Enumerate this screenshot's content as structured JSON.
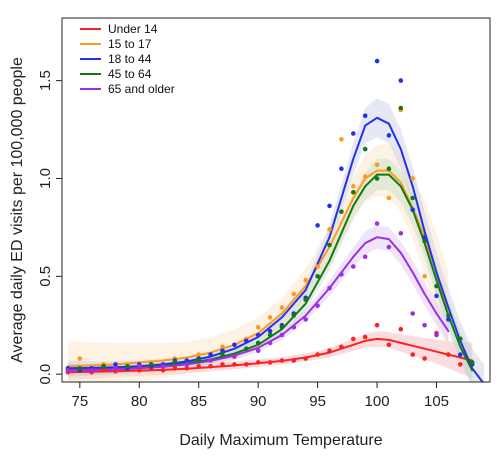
{
  "chart_data": {
    "type": "line",
    "xlabel": "Daily Maximum Temperature",
    "ylabel": "Average daily ED visits per 100,000 people",
    "xlim": [
      73.5,
      109.5
    ],
    "ylim": [
      -0.04,
      1.82
    ],
    "x_ticks": [
      75,
      80,
      85,
      90,
      95,
      100,
      105
    ],
    "x_tick_labels": [
      "75",
      "80",
      "85",
      "90",
      "95",
      "100",
      "105"
    ],
    "y_ticks": [
      0.0,
      0.5,
      1.0,
      1.5
    ],
    "y_tick_labels": [
      "0.0",
      "0.5",
      "1.0",
      "1.5"
    ],
    "grid": false,
    "legend_position": "top-left",
    "series": [
      {
        "name": "Under 14",
        "color": "#ff2020",
        "band_color": "#f5b4bc",
        "line": {
          "x": [
            74,
            76,
            78,
            80,
            82,
            84,
            86,
            88,
            90,
            92,
            94,
            96,
            98,
            99,
            100,
            101,
            102,
            103,
            104,
            105,
            106,
            107,
            108
          ],
          "y": [
            0.01,
            0.012,
            0.015,
            0.018,
            0.022,
            0.028,
            0.036,
            0.045,
            0.056,
            0.068,
            0.085,
            0.11,
            0.15,
            0.17,
            0.18,
            0.175,
            0.16,
            0.145,
            0.13,
            0.115,
            0.1,
            0.085,
            0.07
          ]
        },
        "band_half_width": [
          0.04,
          0.035,
          0.03,
          0.028,
          0.026,
          0.024,
          0.022,
          0.02,
          0.02,
          0.02,
          0.02,
          0.025,
          0.03,
          0.035,
          0.04,
          0.04,
          0.045,
          0.05,
          0.055,
          0.06,
          0.07,
          0.08,
          0.09
        ],
        "points": {
          "x": [
            74,
            75,
            76,
            77,
            78,
            79,
            80,
            81,
            82,
            83,
            84,
            85,
            86,
            87,
            88,
            89,
            90,
            91,
            92,
            93,
            94,
            95,
            96,
            97,
            98,
            99,
            100,
            101,
            102,
            103,
            104,
            105,
            106,
            107
          ],
          "y": [
            0.01,
            0.02,
            0.01,
            0.02,
            0.015,
            0.03,
            0.02,
            0.03,
            0.02,
            0.03,
            0.03,
            0.04,
            0.04,
            0.05,
            0.05,
            0.05,
            0.06,
            0.06,
            0.07,
            0.07,
            0.08,
            0.1,
            0.12,
            0.14,
            0.18,
            0.19,
            0.25,
            0.15,
            0.23,
            0.1,
            0.08,
            0.21,
            0.1,
            0.05
          ]
        }
      },
      {
        "name": "15 to 17",
        "color": "#ff9a1a",
        "band_color": "#fbe3c3",
        "line": {
          "x": [
            74,
            76,
            78,
            80,
            82,
            84,
            86,
            88,
            90,
            92,
            94,
            96,
            98,
            99,
            100,
            101,
            102,
            103,
            104,
            105,
            106
          ],
          "y": [
            0.04,
            0.045,
            0.05,
            0.06,
            0.07,
            0.085,
            0.11,
            0.15,
            0.21,
            0.31,
            0.45,
            0.65,
            0.9,
            1.0,
            1.04,
            1.04,
            0.98,
            0.85,
            0.7,
            0.52,
            0.3
          ]
        },
        "band_half_width": [
          0.13,
          0.12,
          0.11,
          0.1,
          0.09,
          0.08,
          0.08,
          0.08,
          0.08,
          0.08,
          0.09,
          0.1,
          0.11,
          0.12,
          0.13,
          0.14,
          0.15,
          0.16,
          0.18,
          0.2,
          0.22
        ],
        "points": {
          "x": [
            75,
            77,
            79,
            81,
            83,
            85,
            87,
            89,
            90,
            91,
            92,
            93,
            94,
            95,
            96,
            97,
            98,
            99,
            100,
            101,
            102,
            103,
            104
          ],
          "y": [
            0.08,
            0.05,
            0.05,
            0.06,
            0.08,
            0.1,
            0.14,
            0.18,
            0.24,
            0.29,
            0.34,
            0.41,
            0.48,
            0.55,
            0.74,
            1.2,
            0.96,
            1.01,
            1.07,
            0.9,
            1.35,
            1.0,
            0.5
          ]
        }
      },
      {
        "name": "18 to 44",
        "color": "#2233e6",
        "band_color": "#c8cde8",
        "line": {
          "x": [
            74,
            76,
            78,
            80,
            82,
            84,
            86,
            88,
            90,
            92,
            94,
            96,
            98,
            99,
            100,
            101,
            102,
            103,
            104,
            105,
            106,
            107,
            108,
            109
          ],
          "y": [
            0.03,
            0.032,
            0.035,
            0.04,
            0.05,
            0.065,
            0.09,
            0.13,
            0.19,
            0.29,
            0.43,
            0.7,
            1.1,
            1.27,
            1.31,
            1.28,
            1.15,
            0.96,
            0.73,
            0.52,
            0.34,
            0.17,
            0.03,
            -0.05
          ]
        },
        "band_half_width": [
          0.04,
          0.035,
          0.03,
          0.028,
          0.026,
          0.024,
          0.022,
          0.022,
          0.024,
          0.03,
          0.04,
          0.06,
          0.08,
          0.09,
          0.1,
          0.1,
          0.1,
          0.1,
          0.1,
          0.1,
          0.1,
          0.1,
          0.1,
          0.1
        ],
        "points": {
          "x": [
            74,
            75,
            76,
            77,
            78,
            79,
            80,
            81,
            82,
            83,
            84,
            85,
            86,
            87,
            88,
            89,
            90,
            91,
            92,
            93,
            94,
            95,
            96,
            97,
            98,
            99,
            100,
            101,
            102,
            103,
            104,
            105,
            106,
            107,
            108
          ],
          "y": [
            0.03,
            0.02,
            0.03,
            0.04,
            0.05,
            0.03,
            0.05,
            0.04,
            0.05,
            0.07,
            0.07,
            0.08,
            0.1,
            0.12,
            0.15,
            0.17,
            0.2,
            0.22,
            0.25,
            0.31,
            0.39,
            0.76,
            0.86,
            1.05,
            1.23,
            1.32,
            1.6,
            1.22,
            1.5,
            0.84,
            0.7,
            0.4,
            0.28,
            0.1,
            0.05
          ]
        }
      },
      {
        "name": "45 to 64",
        "color": "#127a12",
        "band_color": "#c5dcc5",
        "line": {
          "x": [
            74,
            76,
            78,
            80,
            82,
            84,
            86,
            88,
            90,
            92,
            94,
            96,
            98,
            99,
            100,
            101,
            102,
            103,
            104,
            105,
            106,
            107,
            108
          ],
          "y": [
            0.02,
            0.023,
            0.027,
            0.033,
            0.042,
            0.055,
            0.075,
            0.105,
            0.15,
            0.23,
            0.36,
            0.58,
            0.86,
            0.96,
            1.02,
            1.02,
            0.96,
            0.84,
            0.67,
            0.48,
            0.3,
            0.14,
            0.02
          ]
        },
        "band_half_width": [
          0.035,
          0.03,
          0.028,
          0.026,
          0.024,
          0.022,
          0.022,
          0.022,
          0.024,
          0.03,
          0.04,
          0.05,
          0.06,
          0.07,
          0.08,
          0.08,
          0.08,
          0.08,
          0.08,
          0.08,
          0.08,
          0.08,
          0.08
        ],
        "points": {
          "x": [
            75,
            77,
            79,
            81,
            83,
            85,
            87,
            89,
            90,
            91,
            92,
            93,
            94,
            95,
            96,
            97,
            98,
            99,
            100,
            101,
            102,
            103,
            104,
            105,
            106,
            107,
            108
          ],
          "y": [
            0.03,
            0.04,
            0.04,
            0.05,
            0.06,
            0.07,
            0.1,
            0.13,
            0.16,
            0.2,
            0.24,
            0.3,
            0.38,
            0.5,
            0.66,
            0.83,
            0.93,
            1.15,
            1.0,
            1.05,
            1.36,
            0.9,
            0.68,
            0.45,
            0.3,
            0.18,
            0.06
          ]
        }
      },
      {
        "name": "65 and older",
        "color": "#9a30e6",
        "band_color": "#ddc3f0",
        "line": {
          "x": [
            74,
            76,
            78,
            80,
            82,
            84,
            86,
            88,
            90,
            92,
            94,
            96,
            98,
            99,
            100,
            101,
            102,
            103,
            104,
            105,
            106
          ],
          "y": [
            0.02,
            0.022,
            0.025,
            0.03,
            0.038,
            0.05,
            0.068,
            0.095,
            0.135,
            0.2,
            0.3,
            0.44,
            0.6,
            0.67,
            0.7,
            0.69,
            0.62,
            0.52,
            0.41,
            0.31,
            0.22
          ]
        },
        "band_half_width": [
          0.03,
          0.028,
          0.026,
          0.024,
          0.022,
          0.02,
          0.02,
          0.02,
          0.022,
          0.026,
          0.03,
          0.04,
          0.05,
          0.06,
          0.06,
          0.06,
          0.06,
          0.06,
          0.06,
          0.06,
          0.06
        ],
        "points": {
          "x": [
            74,
            76,
            78,
            80,
            82,
            84,
            86,
            88,
            90,
            91,
            92,
            93,
            94,
            95,
            96,
            97,
            98,
            99,
            100,
            101,
            102,
            103,
            104,
            105
          ],
          "y": [
            0.02,
            0.02,
            0.03,
            0.04,
            0.04,
            0.05,
            0.07,
            0.09,
            0.12,
            0.16,
            0.2,
            0.24,
            0.28,
            0.35,
            0.44,
            0.51,
            0.55,
            0.6,
            0.77,
            0.65,
            0.72,
            0.31,
            0.25,
            0.2
          ]
        }
      }
    ]
  }
}
